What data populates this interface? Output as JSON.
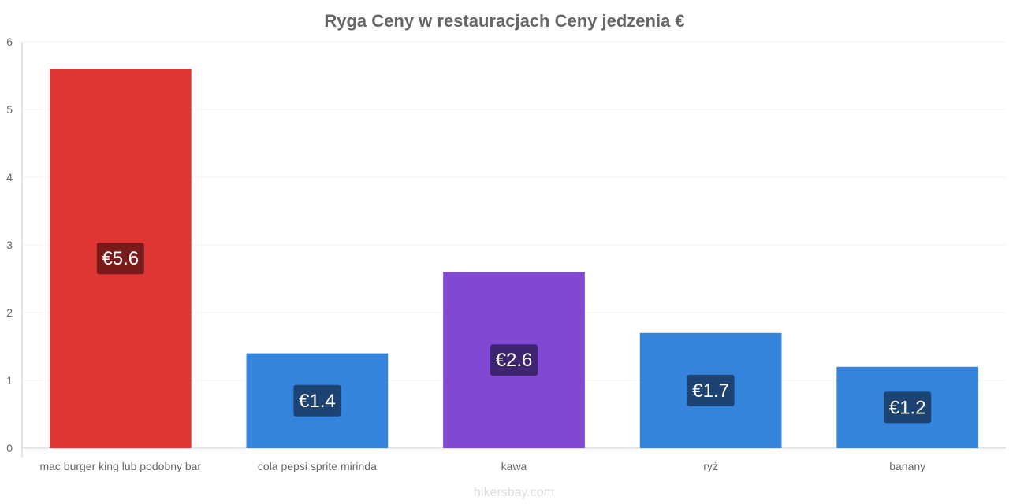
{
  "chart_data": {
    "type": "bar",
    "title": "Ryga Ceny w restauracjach Ceny jedzenia €",
    "categories": [
      "mac burger king lub podobny bar",
      "cola pepsi sprite mirinda",
      "kawa",
      "ryż",
      "banany"
    ],
    "values": [
      5.6,
      1.4,
      2.6,
      1.7,
      1.2
    ],
    "value_labels": [
      "€5.6",
      "€1.4",
      "€2.6",
      "€1.7",
      "€1.2"
    ],
    "bar_colors": [
      "#e03535",
      "#3584dc",
      "#8148d4",
      "#3584dc",
      "#3584dc"
    ],
    "label_bg_colors": [
      "#7a1b1b",
      "#1d4373",
      "#3f2470",
      "#1d4373",
      "#1d4373"
    ],
    "y_ticks": [
      "0",
      "1",
      "2",
      "3",
      "4",
      "5",
      "6"
    ],
    "ylim": [
      0,
      6
    ],
    "grid": true
  },
  "watermark": "hikersbay.com"
}
